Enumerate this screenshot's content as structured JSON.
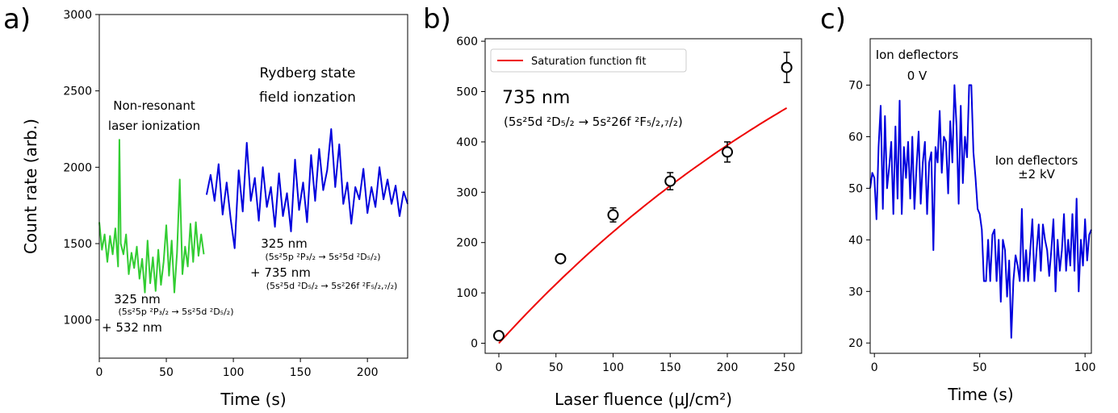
{
  "colors": {
    "green": "#32cd32",
    "blue": "#0000dd",
    "red": "#ee0000",
    "black": "#000000"
  },
  "chart_data": [
    {
      "panel": "a)",
      "type": "line",
      "xlabel": "Time (s)",
      "ylabel": "Count rate (arb.)",
      "xlim": [
        0,
        230
      ],
      "ylim": [
        750,
        3000
      ],
      "xticks": [
        "0",
        "50",
        "100",
        "150",
        "200"
      ],
      "yticks": [
        "1000",
        "1500",
        "2000",
        "2500",
        "3000"
      ],
      "series": [
        {
          "color": "green",
          "x": [
            0,
            2,
            4,
            6,
            8,
            10,
            12,
            14,
            15,
            16,
            18,
            20,
            22,
            24,
            26,
            28,
            30,
            32,
            34,
            36,
            38,
            40,
            42,
            44,
            46,
            48,
            50,
            52,
            54,
            56,
            58,
            60,
            62,
            64,
            66,
            68,
            70,
            72,
            74,
            76,
            78
          ],
          "y": [
            1640,
            1460,
            1560,
            1380,
            1550,
            1430,
            1600,
            1350,
            2180,
            1500,
            1430,
            1560,
            1300,
            1440,
            1340,
            1480,
            1270,
            1400,
            1180,
            1520,
            1240,
            1410,
            1190,
            1460,
            1230,
            1380,
            1620,
            1290,
            1520,
            1180,
            1440,
            1920,
            1300,
            1480,
            1350,
            1630,
            1380,
            1640,
            1420,
            1560,
            1430
          ]
        },
        {
          "color": "blue",
          "x": [
            80,
            83,
            86,
            89,
            92,
            95,
            98,
            101,
            104,
            107,
            110,
            113,
            116,
            119,
            122,
            125,
            128,
            131,
            134,
            137,
            140,
            143,
            146,
            149,
            152,
            155,
            158,
            161,
            164,
            167,
            170,
            173,
            176,
            179,
            182,
            185,
            188,
            191,
            194,
            197,
            200,
            203,
            206,
            209,
            212,
            215,
            218,
            221,
            224,
            227,
            230
          ],
          "y": [
            1820,
            1950,
            1780,
            2020,
            1690,
            1900,
            1660,
            1470,
            1980,
            1710,
            2160,
            1780,
            1930,
            1650,
            2000,
            1740,
            1870,
            1610,
            1960,
            1680,
            1830,
            1580,
            2050,
            1720,
            1900,
            1640,
            2080,
            1780,
            2120,
            1850,
            1980,
            2250,
            1870,
            2150,
            1760,
            1900,
            1630,
            1870,
            1790,
            1990,
            1700,
            1870,
            1740,
            2000,
            1790,
            1920,
            1760,
            1880,
            1680,
            1840,
            1760
          ]
        }
      ],
      "annotations": {
        "nonres_1": "Non-resonant",
        "nonres_2": "laser ionization",
        "ryd_1": "Rydberg state",
        "ryd_2": "field ionzation",
        "g_line1": "325 nm",
        "g_line2": "(5s²5p ²P₃/₂ → 5s²5d ²D₅/₂)",
        "g_line3": "+ 532 nm",
        "b_line1": "325 nm",
        "b_line2": "(5s²5p ²P₃/₂ → 5s²5d ²D₅/₂)",
        "b_line3": "+ 735 nm",
        "b_line4": "(5s²5d ²D₅/₂ → 5s²26f ²F₅/₂,₇/₂)"
      }
    },
    {
      "panel": "b)",
      "type": "scatter",
      "xlabel": "Laser fluence (μJ/cm²)",
      "ylabel": "",
      "xlim": [
        -12,
        265
      ],
      "ylim": [
        -20,
        605
      ],
      "xticks": [
        "0",
        "50",
        "100",
        "150",
        "200",
        "250"
      ],
      "yticks": [
        "0",
        "100",
        "200",
        "300",
        "400",
        "500",
        "600"
      ],
      "legend": {
        "label": "Saturation function fit",
        "placement": "top-left"
      },
      "points": [
        {
          "x": 0,
          "y": 15,
          "err": 0
        },
        {
          "x": 54,
          "y": 168,
          "err": 0
        },
        {
          "x": 100,
          "y": 255,
          "err": 14
        },
        {
          "x": 150,
          "y": 322,
          "err": 17
        },
        {
          "x": 200,
          "y": 380,
          "err": 20
        },
        {
          "x": 252,
          "y": 548,
          "err": 30
        }
      ],
      "fit": {
        "Ymax": 1000,
        "Fsat": 400
      },
      "annotations": {
        "wl": "735 nm",
        "transition": "(5s²5d ²D₅/₂ → 5s²26f ²F₅/₂,₇/₂)"
      }
    },
    {
      "panel": "c)",
      "type": "line",
      "xlabel": "Time (s)",
      "ylabel": "",
      "xlim": [
        -2,
        103
      ],
      "ylim": [
        18,
        79
      ],
      "xticks": [
        "0",
        "50",
        "100"
      ],
      "yticks": [
        "20",
        "30",
        "40",
        "50",
        "60",
        "70"
      ],
      "series": [
        {
          "color": "blue",
          "x": [
            -2,
            -1,
            0,
            1,
            2,
            3,
            4,
            5,
            6,
            7,
            8,
            9,
            10,
            11,
            12,
            13,
            14,
            15,
            16,
            17,
            18,
            19,
            20,
            21,
            22,
            23,
            24,
            25,
            26,
            27,
            28,
            29,
            30,
            31,
            32,
            33,
            34,
            35,
            36,
            37,
            38,
            39,
            40,
            41,
            42,
            43,
            44,
            45,
            46,
            47,
            48,
            49,
            50,
            51,
            52,
            53,
            54,
            55,
            56,
            57,
            58,
            59,
            60,
            61,
            62,
            63,
            64,
            65,
            66,
            67,
            68,
            69,
            70,
            71,
            72,
            73,
            74,
            75,
            76,
            77,
            78,
            79,
            80,
            81,
            82,
            83,
            84,
            85,
            86,
            87,
            88,
            89,
            90,
            91,
            92,
            93,
            94,
            95,
            96,
            97,
            98,
            99,
            100,
            101,
            102,
            103
          ],
          "y": [
            50,
            53,
            52,
            44,
            58,
            66,
            46,
            64,
            50,
            54,
            59,
            45,
            62,
            48,
            67,
            45,
            58,
            52,
            59,
            48,
            60,
            46,
            54,
            61,
            47,
            55,
            59,
            45,
            55,
            57,
            38,
            58,
            55,
            65,
            53,
            60,
            59,
            49,
            63,
            55,
            70,
            62,
            47,
            66,
            51,
            60,
            56,
            70,
            70,
            57,
            52,
            46,
            45,
            42,
            32,
            32,
            40,
            32,
            41,
            42,
            32,
            40,
            28,
            40,
            38,
            29,
            36,
            21,
            32,
            37,
            35,
            32,
            46,
            32,
            38,
            32,
            38,
            44,
            32,
            38,
            43,
            34,
            43,
            40,
            38,
            33,
            38,
            44,
            30,
            40,
            34,
            38,
            45,
            34,
            40,
            35,
            45,
            34,
            48,
            30,
            40,
            35,
            44,
            36,
            41,
            42
          ]
        }
      ],
      "annotations": {
        "left_1": "Ion deflectors",
        "left_2": "0 V",
        "right_1": "Ion deflectors",
        "right_2": "±2 kV"
      }
    }
  ]
}
